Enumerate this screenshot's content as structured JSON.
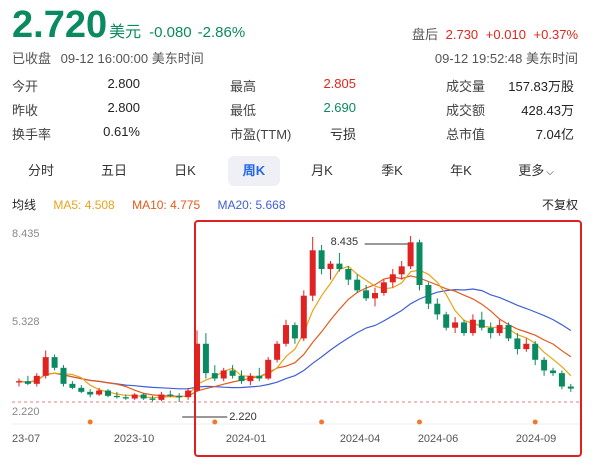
{
  "quote": {
    "price": "2.720",
    "currency": "美元",
    "change": "-0.080",
    "change_pct": "-2.86%",
    "status": "已收盘",
    "timestamp": "09-12 16:00:00 美东时间",
    "after_label": "盘后",
    "after_price": "2.730",
    "after_change": "+0.010",
    "after_pct": "+0.37%",
    "after_time": "09-12 19:52:48 美东时间"
  },
  "stats": [
    [
      {
        "label": "今开",
        "value": "2.800"
      },
      {
        "label": "最高",
        "value": "2.805",
        "color": "red"
      },
      {
        "label": "成交量",
        "value": "157.83万股"
      }
    ],
    [
      {
        "label": "昨收",
        "value": "2.800"
      },
      {
        "label": "最低",
        "value": "2.690",
        "color": "green"
      },
      {
        "label": "成交额",
        "value": "428.43万"
      }
    ],
    [
      {
        "label": "换手率",
        "value": "0.61%"
      },
      {
        "label": "市盈(TTM)",
        "value": "亏损"
      },
      {
        "label": "总市值",
        "value": "7.04亿"
      }
    ]
  ],
  "tabs": [
    {
      "label": "分时"
    },
    {
      "label": "五日"
    },
    {
      "label": "日K"
    },
    {
      "label": "周K",
      "active": true
    },
    {
      "label": "月K"
    },
    {
      "label": "季K"
    },
    {
      "label": "年K"
    },
    {
      "label": "更多",
      "dropdown": true
    }
  ],
  "legend": {
    "title": "均线",
    "ma5": "MA5: 4.508",
    "ma10": "MA10: 4.775",
    "ma20": "MA20: 5.668",
    "adjust": "不复权"
  },
  "chart_data": {
    "type": "candlestick",
    "y_ticks": [
      "8.435",
      "5.328",
      "2.220"
    ],
    "ylim": [
      2.22,
      8.435
    ],
    "x_ticks": [
      "23-07",
      "2023-10",
      "2024-01",
      "2024-04",
      "2024-06",
      "2024-09"
    ],
    "annotations": {
      "high": "8.435",
      "low": "2.220"
    },
    "colors": {
      "up": "#e02222",
      "down": "#0a8a60",
      "ma5": "#e8a31a",
      "ma10": "#e45a1a",
      "ma20": "#3f5fd6"
    },
    "candles": [
      [
        2.95,
        3.1,
        2.8,
        3.0
      ],
      [
        3.0,
        3.2,
        2.85,
        2.9
      ],
      [
        2.9,
        3.3,
        2.8,
        3.2
      ],
      [
        3.2,
        4.15,
        3.1,
        3.9
      ],
      [
        3.9,
        4.0,
        3.4,
        3.5
      ],
      [
        3.5,
        3.6,
        2.8,
        2.9
      ],
      [
        2.9,
        3.0,
        2.7,
        2.75
      ],
      [
        2.75,
        2.85,
        2.55,
        2.6
      ],
      [
        2.6,
        2.7,
        2.4,
        2.5
      ],
      [
        2.5,
        2.75,
        2.45,
        2.65
      ],
      [
        2.65,
        2.7,
        2.4,
        2.45
      ],
      [
        2.45,
        2.6,
        2.35,
        2.4
      ],
      [
        2.4,
        2.5,
        2.3,
        2.35
      ],
      [
        2.35,
        2.55,
        2.3,
        2.5
      ],
      [
        2.5,
        2.55,
        2.3,
        2.35
      ],
      [
        2.35,
        2.45,
        2.25,
        2.3
      ],
      [
        2.3,
        2.6,
        2.25,
        2.5
      ],
      [
        2.5,
        2.65,
        2.4,
        2.45
      ],
      [
        2.45,
        2.55,
        2.22,
        2.4
      ],
      [
        2.4,
        2.75,
        2.3,
        2.65
      ],
      [
        2.65,
        4.9,
        2.6,
        4.4
      ],
      [
        4.4,
        4.8,
        3.1,
        3.3
      ],
      [
        3.3,
        3.6,
        3.0,
        3.1
      ],
      [
        3.1,
        3.5,
        3.0,
        3.4
      ],
      [
        3.4,
        3.6,
        3.1,
        3.2
      ],
      [
        3.2,
        3.4,
        2.9,
        3.0
      ],
      [
        3.0,
        3.3,
        2.85,
        3.2
      ],
      [
        3.2,
        3.5,
        3.0,
        3.1
      ],
      [
        3.1,
        3.9,
        3.05,
        3.8
      ],
      [
        3.8,
        4.5,
        3.7,
        4.4
      ],
      [
        4.4,
        5.3,
        4.3,
        5.1
      ],
      [
        5.1,
        5.2,
        4.4,
        4.6
      ],
      [
        4.6,
        6.4,
        4.5,
        6.2
      ],
      [
        6.2,
        8.4,
        6.0,
        7.9
      ],
      [
        7.9,
        8.1,
        7.0,
        7.2
      ],
      [
        7.2,
        7.5,
        6.8,
        7.4
      ],
      [
        7.4,
        7.8,
        7.1,
        7.2
      ],
      [
        7.2,
        7.3,
        6.6,
        6.8
      ],
      [
        6.8,
        7.0,
        6.3,
        6.4
      ],
      [
        6.4,
        6.6,
        6.0,
        6.1
      ],
      [
        6.1,
        6.5,
        5.8,
        6.3
      ],
      [
        6.3,
        6.8,
        6.2,
        6.7
      ],
      [
        6.7,
        7.2,
        6.5,
        7.0
      ],
      [
        7.0,
        7.5,
        6.8,
        7.3
      ],
      [
        7.3,
        8.435,
        7.2,
        8.2
      ],
      [
        8.2,
        8.3,
        6.4,
        6.6
      ],
      [
        6.6,
        6.7,
        5.7,
        5.9
      ],
      [
        5.9,
        6.1,
        5.3,
        5.5
      ],
      [
        5.5,
        5.6,
        4.9,
        5.0
      ],
      [
        5.0,
        5.4,
        4.8,
        5.2
      ],
      [
        5.2,
        5.3,
        4.7,
        4.8
      ],
      [
        4.8,
        5.5,
        4.7,
        5.3
      ],
      [
        5.3,
        5.6,
        4.9,
        5.0
      ],
      [
        5.0,
        5.2,
        4.6,
        4.8
      ],
      [
        4.8,
        5.3,
        4.7,
        5.1
      ],
      [
        5.1,
        5.2,
        4.5,
        4.6
      ],
      [
        4.6,
        4.8,
        4.0,
        4.2
      ],
      [
        4.2,
        4.6,
        4.1,
        4.4
      ],
      [
        4.4,
        4.5,
        3.6,
        3.8
      ],
      [
        3.8,
        3.9,
        3.2,
        3.4
      ],
      [
        3.4,
        3.5,
        3.2,
        3.3
      ],
      [
        3.3,
        3.4,
        2.7,
        2.8
      ],
      [
        2.8,
        2.9,
        2.6,
        2.72
      ]
    ]
  }
}
